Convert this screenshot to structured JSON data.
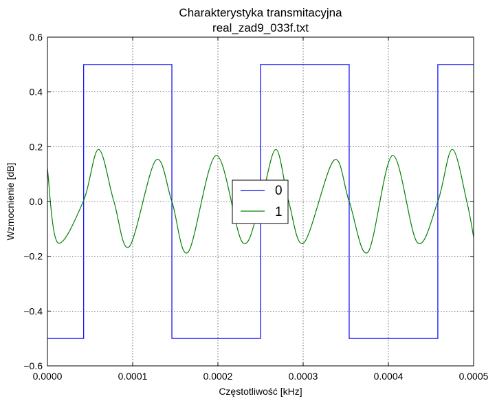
{
  "chart_data": {
    "type": "line",
    "title": "Charakterystyka transmitacyjna",
    "subtitle": "real_zad9_033f.txt",
    "xlabel": "Częstotliwość [kHz]",
    "ylabel": "Wzmocnienie [dB]",
    "xlim": [
      0.0,
      0.0005
    ],
    "ylim": [
      -0.6,
      0.6
    ],
    "xticks": [
      0.0,
      0.0001,
      0.0002,
      0.0003,
      0.0004,
      0.0005
    ],
    "xtick_labels": [
      "0.0000",
      "0.0001",
      "0.0002",
      "0.0003",
      "0.0004",
      "0.0005"
    ],
    "yticks": [
      -0.6,
      -0.4,
      -0.2,
      0.0,
      0.2,
      0.4,
      0.6
    ],
    "ytick_labels": [
      "−0.6",
      "−0.4",
      "−0.2",
      "0.0",
      "0.2",
      "0.4",
      "0.6"
    ],
    "grid": true,
    "legend_position": "center",
    "series": [
      {
        "name": "0",
        "color": "#0000ff",
        "x": [
          0.0,
          4.25e-05,
          4.25e-05,
          0.000146,
          0.000146,
          0.00025,
          0.00025,
          0.000354,
          0.000354,
          0.000458,
          0.000458,
          0.0005
        ],
        "y": [
          -0.5,
          -0.5,
          0.5,
          0.5,
          -0.5,
          -0.5,
          0.5,
          0.5,
          -0.5,
          -0.5,
          0.5,
          0.5
        ]
      },
      {
        "name": "1",
        "color": "#008000",
        "x": [
          0.0,
          1.2e-05,
          4.2e-05,
          6e-05,
          7.8e-05,
          9.6e-05,
          0.000127,
          0.000146,
          0.000165,
          0.000198,
          0.000229,
          0.00025,
          0.000268,
          0.000283,
          0.000301,
          0.000336,
          0.000354,
          0.000376,
          0.000405,
          0.000434,
          0.000458,
          0.000475,
          0.000492,
          0.0005
        ],
        "y": [
          0.12,
          -0.15,
          0.0,
          0.19,
          0.0,
          -0.165,
          0.15,
          0.0,
          -0.185,
          0.168,
          -0.15,
          0.0,
          0.19,
          0.0,
          -0.15,
          0.15,
          0.0,
          -0.185,
          0.168,
          -0.15,
          0.0,
          0.19,
          0.0,
          -0.13
        ]
      }
    ]
  }
}
